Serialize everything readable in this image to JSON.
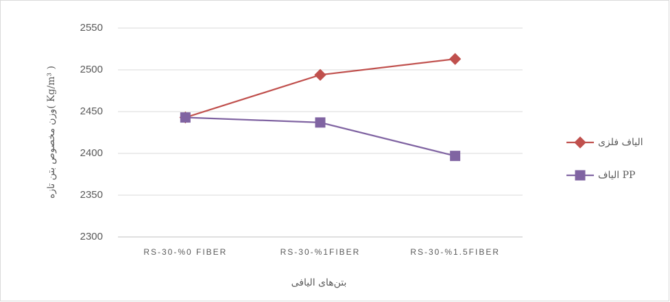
{
  "chart_data": {
    "type": "line",
    "y_label": "وزن مخصوص بتن تازه( Kg/m³ )",
    "x_label": "بتن‌های الیافی",
    "categories": [
      "RS-30-%0 FIBER",
      "RS-30-%1FIBER",
      "RS-30-%1.5FIBER"
    ],
    "series": [
      {
        "name": "الیاف فلزی",
        "color": "#c0504d",
        "marker": "diamond",
        "values": [
          2443,
          2494,
          2513
        ]
      },
      {
        "name": "الیاف PP",
        "color": "#8064a2",
        "marker": "square",
        "values": [
          2443,
          2437,
          2397
        ]
      }
    ],
    "ylim": [
      2300,
      2550
    ],
    "yticks": [
      2300,
      2350,
      2400,
      2450,
      2500,
      2550
    ],
    "grid": true
  }
}
